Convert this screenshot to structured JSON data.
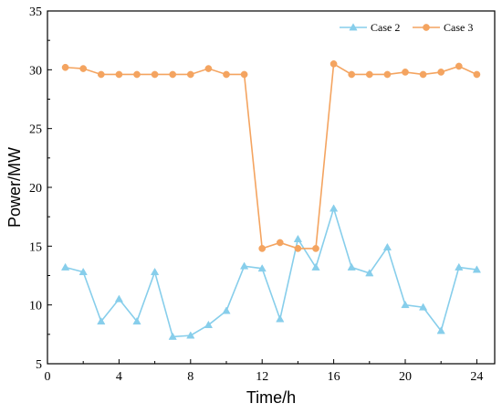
{
  "chart_data": {
    "type": "line",
    "title": "",
    "xlabel": "Time/h",
    "ylabel": "Power/MW",
    "xlim": [
      0,
      25
    ],
    "ylim": [
      5,
      35
    ],
    "x_ticks": [
      0,
      4,
      8,
      12,
      16,
      20,
      24
    ],
    "y_ticks": [
      5,
      10,
      15,
      20,
      25,
      30,
      35
    ],
    "x": [
      1,
      2,
      3,
      4,
      5,
      6,
      7,
      8,
      9,
      10,
      11,
      12,
      13,
      14,
      15,
      16,
      17,
      18,
      19,
      20,
      21,
      22,
      23,
      24
    ],
    "grid": false,
    "legend_position": "top-right",
    "series": [
      {
        "name": "Case 2",
        "color": "#87CEEB",
        "marker": "triangle",
        "values": [
          13.2,
          12.8,
          8.6,
          10.5,
          8.6,
          12.8,
          7.3,
          7.4,
          8.3,
          9.5,
          13.3,
          13.1,
          8.8,
          15.6,
          13.2,
          18.2,
          13.2,
          12.7,
          14.9,
          10.0,
          9.8,
          7.8,
          13.2,
          13.0
        ]
      },
      {
        "name": "Case 3",
        "color": "#F4A460",
        "marker": "circle",
        "values": [
          30.2,
          30.1,
          29.6,
          29.6,
          29.6,
          29.6,
          29.6,
          29.6,
          30.1,
          29.6,
          29.6,
          14.8,
          15.3,
          14.8,
          14.8,
          30.5,
          29.6,
          29.6,
          29.6,
          29.8,
          29.6,
          29.8,
          30.3,
          29.6
        ]
      }
    ]
  }
}
